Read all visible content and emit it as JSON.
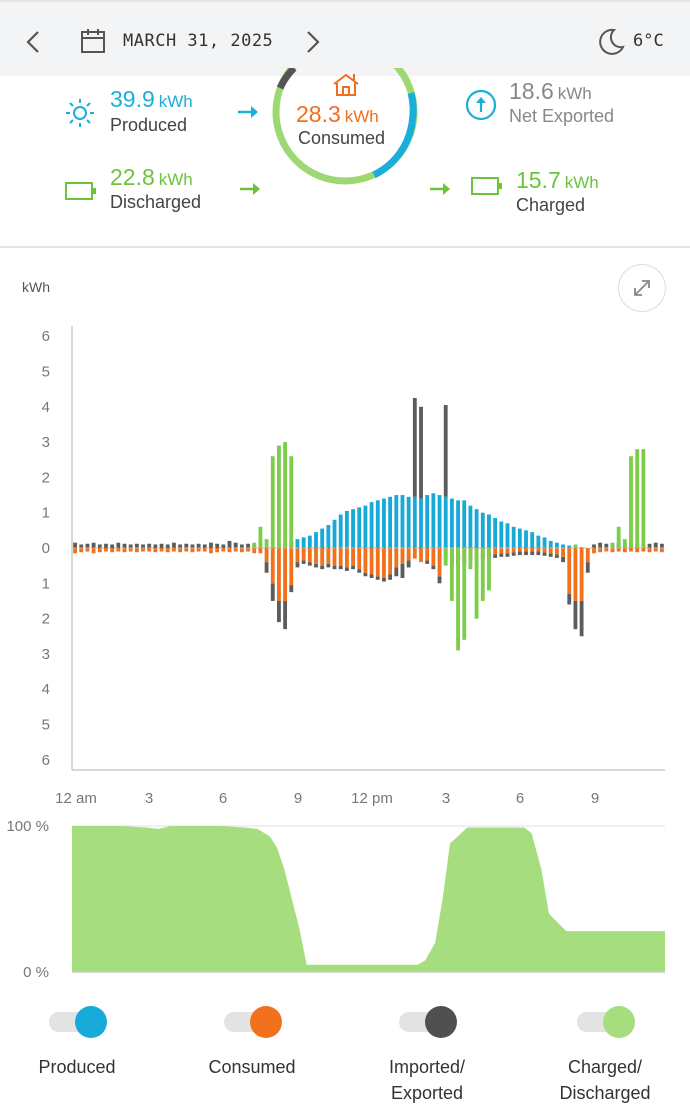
{
  "header": {
    "date": "MARCH 31, 2025",
    "temperature": "6°C"
  },
  "summary": {
    "produced": {
      "value": "39.9",
      "unit": "kWh",
      "label": "Produced"
    },
    "consumed": {
      "value": "28.3",
      "unit": "kWh",
      "label": "Consumed"
    },
    "net_exported": {
      "value": "18.6",
      "unit": "kWh",
      "label": "Net Exported"
    },
    "discharged": {
      "value": "22.8",
      "unit": "kWh",
      "label": "Discharged"
    },
    "charged": {
      "value": "15.7",
      "unit": "kWh",
      "label": "Charged"
    }
  },
  "colors": {
    "produced": "#17a9d8",
    "consumed": "#f2711c",
    "imported": "#5c5c5c",
    "battery": "#7ccd4a",
    "soc_fill": "#a6dd7e"
  },
  "chart_data": [
    {
      "type": "bar",
      "ylabel": "kWh",
      "y_ticks_top": [
        "6",
        "5",
        "4",
        "3",
        "2",
        "1",
        "0"
      ],
      "y_ticks_bottom": [
        "1",
        "2",
        "3",
        "4",
        "5",
        "6"
      ],
      "ylim": [
        -6,
        6
      ],
      "x_ticks": [
        "12 am",
        "3",
        "6",
        "9",
        "12 pm",
        "3",
        "6",
        "9"
      ],
      "interval_hours": 0.25,
      "series": [
        {
          "name": "Produced",
          "values": [
            0,
            0,
            0,
            0,
            0,
            0,
            0,
            0,
            0,
            0,
            0,
            0,
            0,
            0,
            0,
            0,
            0,
            0,
            0,
            0,
            0,
            0,
            0,
            0,
            0,
            0,
            0,
            0,
            0,
            0,
            0,
            0,
            0.05,
            0.08,
            0.15,
            0.2,
            0.25,
            0.3,
            0.35,
            0.45,
            0.55,
            0.65,
            0.8,
            0.95,
            1.05,
            1.1,
            1.15,
            1.2,
            1.3,
            1.35,
            1.4,
            1.45,
            1.5,
            1.5,
            1.45,
            1.45,
            1.4,
            1.5,
            1.55,
            1.5,
            1.45,
            1.4,
            1.35,
            1.35,
            1.2,
            1.1,
            1.0,
            0.95,
            0.85,
            0.75,
            0.7,
            0.6,
            0.55,
            0.5,
            0.45,
            0.35,
            0.3,
            0.2,
            0.15,
            0.1,
            0.07,
            0.05,
            0.02,
            0,
            0,
            0,
            0,
            0,
            0,
            0,
            0,
            0,
            0,
            0,
            0,
            0
          ]
        },
        {
          "name": "Consumed",
          "values": [
            -0.15,
            -0.12,
            -0.1,
            -0.15,
            -0.12,
            -0.1,
            -0.12,
            -0.1,
            -0.12,
            -0.1,
            -0.12,
            -0.1,
            -0.1,
            -0.12,
            -0.1,
            -0.12,
            -0.1,
            -0.12,
            -0.1,
            -0.12,
            -0.1,
            -0.1,
            -0.15,
            -0.12,
            -0.1,
            -0.12,
            -0.1,
            -0.12,
            -0.1,
            -0.15,
            -0.15,
            -0.4,
            -1.0,
            -1.5,
            -1.5,
            -1.05,
            -0.4,
            -0.35,
            -0.4,
            -0.45,
            -0.5,
            -0.45,
            -0.5,
            -0.5,
            -0.55,
            -0.5,
            -0.6,
            -0.7,
            -0.75,
            -0.8,
            -0.85,
            -0.75,
            -0.55,
            -0.45,
            -0.35,
            -0.3,
            -0.4,
            -0.35,
            -0.5,
            -0.8,
            -0.3,
            -0.25,
            -0.3,
            -0.3,
            -0.25,
            -0.2,
            -0.2,
            -0.2,
            -0.18,
            -0.15,
            -0.15,
            -0.12,
            -0.1,
            -0.1,
            -0.1,
            -0.1,
            -0.12,
            -0.15,
            -0.18,
            -0.25,
            -1.3,
            -1.5,
            -1.5,
            -0.4,
            -0.15,
            -0.12,
            -0.1,
            -0.12,
            -0.1,
            -0.12,
            -0.1,
            -0.12,
            -0.1,
            -0.12,
            -0.1,
            -0.12
          ]
        },
        {
          "name": "Imported/Exported",
          "values": [
            0.15,
            0.1,
            0.12,
            0.15,
            0.1,
            0.12,
            0.1,
            0.15,
            0.12,
            0.1,
            0.12,
            0.1,
            0.12,
            0.1,
            0.12,
            0.1,
            0.15,
            0.1,
            0.12,
            0.1,
            0.12,
            0.1,
            0.15,
            0.12,
            0.1,
            0.2,
            0.15,
            0.1,
            0.12,
            0.1,
            0.15,
            -0.3,
            -0.5,
            -0.6,
            -0.8,
            -0.2,
            -0.15,
            -0.1,
            -0.1,
            -0.1,
            -0.1,
            -0.1,
            -0.1,
            -0.1,
            -0.1,
            -0.1,
            -0.1,
            -0.1,
            -0.1,
            -0.1,
            -0.1,
            -0.15,
            -0.25,
            -0.4,
            -0.2,
            2.8,
            2.6,
            -0.1,
            -0.1,
            -0.2,
            2.6,
            -0.2,
            -0.2,
            -0.15,
            -0.1,
            -0.1,
            -0.1,
            -0.1,
            -0.1,
            -0.1,
            -0.1,
            -0.1,
            -0.1,
            -0.1,
            -0.1,
            -0.1,
            -0.1,
            -0.1,
            -0.1,
            -0.15,
            -0.3,
            -0.8,
            -1.0,
            -0.3,
            0.1,
            0.15,
            0.12,
            0.1,
            0.12,
            0.1,
            0.15,
            0.12,
            0.1,
            0.12,
            0.15,
            0.12
          ]
        },
        {
          "name": "Charged/Discharged",
          "values": [
            0,
            0,
            0,
            0,
            0,
            0,
            0,
            0,
            0,
            0,
            0,
            0,
            0,
            0,
            0,
            0,
            0,
            0,
            0,
            0,
            0,
            0,
            0,
            0,
            0,
            0,
            0,
            0,
            0,
            0.15,
            0.6,
            0.25,
            2.6,
            2.9,
            3.0,
            2.6,
            0,
            0,
            0,
            0,
            0,
            0,
            0,
            0,
            0,
            0,
            0,
            0,
            0,
            0,
            0,
            0,
            0,
            0,
            0,
            0,
            0,
            0,
            0,
            0,
            -0.5,
            -1.5,
            -2.9,
            -2.6,
            -0.6,
            -2.0,
            -1.5,
            -1.2,
            0,
            0,
            0,
            0,
            0,
            0,
            0,
            0,
            0,
            0,
            0,
            0,
            0,
            0.1,
            0,
            0,
            0,
            0,
            0,
            0.15,
            0.6,
            0.25,
            2.6,
            2.8,
            2.8,
            0,
            0,
            0,
            0,
            0
          ]
        }
      ]
    },
    {
      "type": "area",
      "y_ticks": [
        "100 %",
        "0 %"
      ],
      "ylim": [
        0,
        100
      ],
      "x_hours": [
        0,
        1,
        2,
        3,
        3.5,
        4,
        5,
        6,
        7,
        7.5,
        8,
        8.3,
        8.6,
        8.9,
        9.2,
        9.5,
        10,
        11,
        12,
        13,
        14,
        14.3,
        14.7,
        15,
        15.3,
        16,
        17,
        18,
        18.3,
        18.6,
        19,
        19.3,
        20,
        21,
        22,
        23,
        24
      ],
      "values": [
        100,
        100,
        100,
        99,
        98,
        100,
        100,
        100,
        99,
        98,
        93,
        85,
        70,
        50,
        30,
        5,
        5,
        5,
        5,
        5,
        5,
        8,
        20,
        50,
        88,
        99,
        99,
        99,
        99,
        95,
        70,
        40,
        28,
        28,
        28,
        28,
        28
      ]
    }
  ],
  "legend": [
    {
      "label": "Produced",
      "color": "#17a9d8"
    },
    {
      "label": "Consumed",
      "color": "#f2711c"
    },
    {
      "label": "Imported/ Exported",
      "color": "#505050"
    },
    {
      "label": "Charged/ Discharged",
      "color": "#a6dd7e"
    }
  ]
}
